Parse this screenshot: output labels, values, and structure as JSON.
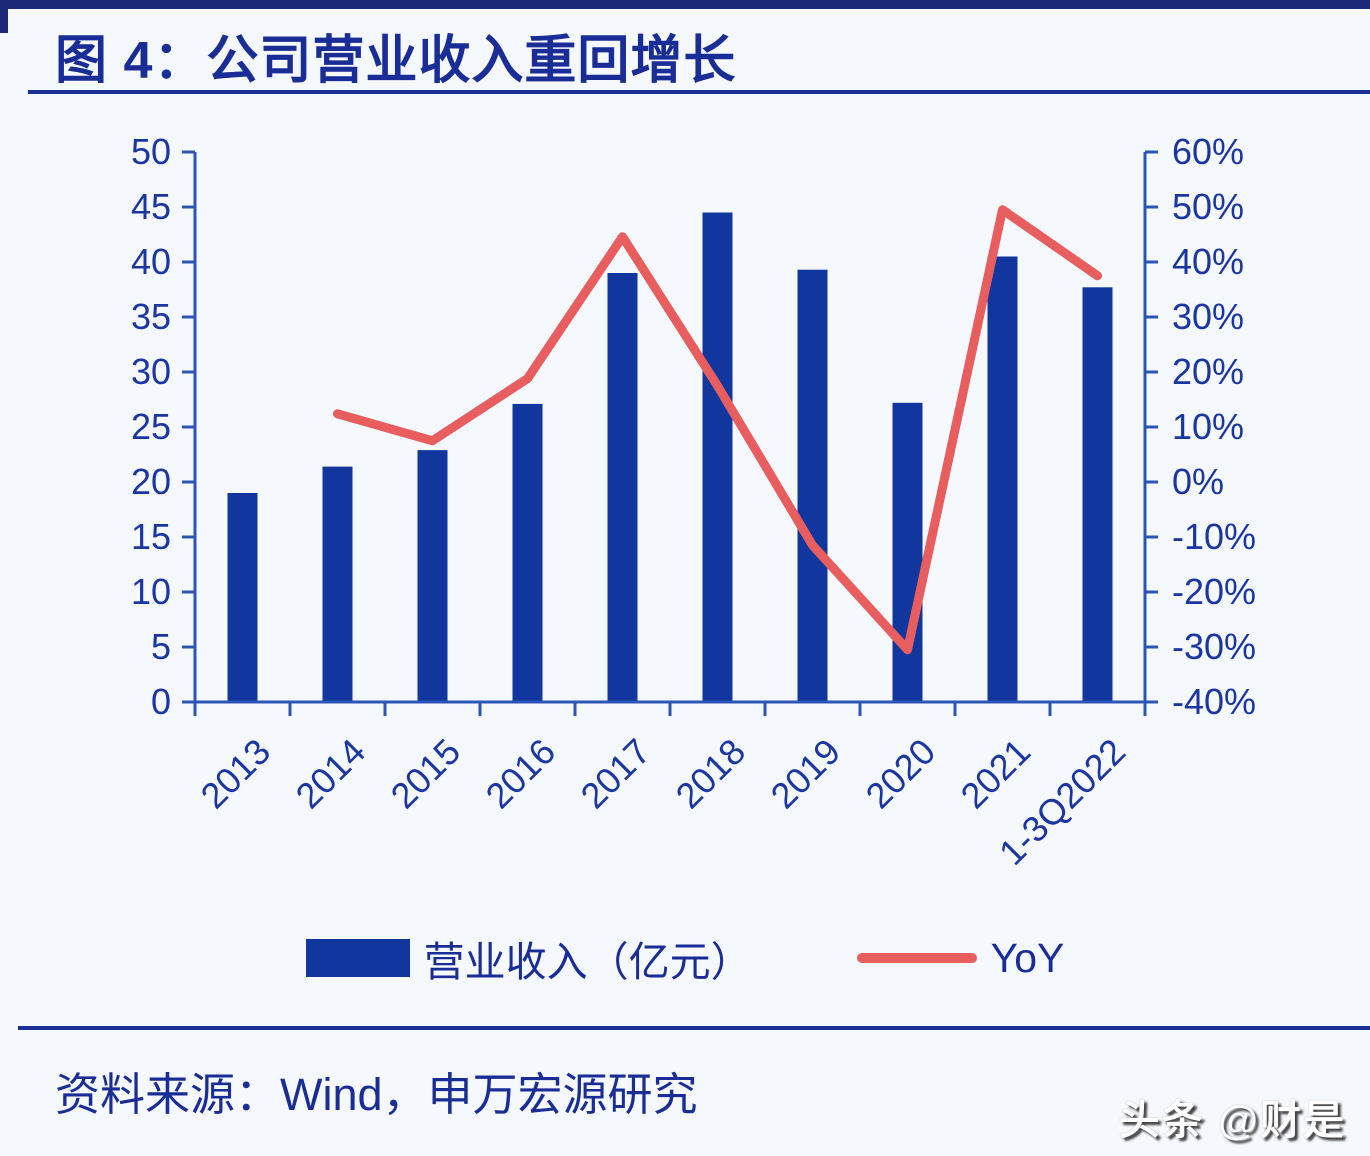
{
  "page": {
    "background_color": "#f5f8fd",
    "top_bar_color": "#1b2878"
  },
  "figure": {
    "title": "图 4：公司营业收入重回增长",
    "title_color": "#1a2c96"
  },
  "chart_data": {
    "type": "bar+line combo",
    "categories": [
      "2013",
      "2014",
      "2015",
      "2016",
      "2017",
      "2018",
      "2019",
      "2020",
      "2021",
      "1-3Q2022"
    ],
    "series": [
      {
        "name": "营业收入（亿元）",
        "type": "bar",
        "axis": "left",
        "color": "#11379f",
        "values": [
          19.0,
          21.4,
          22.9,
          27.1,
          39.0,
          44.5,
          39.3,
          27.2,
          40.5,
          37.7
        ]
      },
      {
        "name": "YoY",
        "type": "line",
        "axis": "right",
        "color": "#e85d5e",
        "values": [
          null,
          12.4,
          7.5,
          18.8,
          44.6,
          17.5,
          -11.5,
          -30.5,
          49.5,
          37.5
        ]
      }
    ],
    "left_axis": {
      "min": 0,
      "max": 50,
      "tick_step": 5,
      "tick_labels": [
        "0",
        "5",
        "10",
        "15",
        "20",
        "25",
        "30",
        "35",
        "40",
        "45",
        "50"
      ]
    },
    "right_axis": {
      "min": -40,
      "max": 60,
      "tick_step": 10,
      "tick_labels": [
        "-40%",
        "-30%",
        "-20%",
        "-10%",
        "0%",
        "10%",
        "20%",
        "30%",
        "40%",
        "50%",
        "60%"
      ]
    },
    "axis_color": "#2d55b5",
    "label_color": "#1b36a3",
    "grid": false,
    "legend_position": "bottom",
    "x_labels_rotation_deg": -45
  },
  "source": {
    "text": "资料来源：Wind，申万宏源研究"
  },
  "watermark": {
    "text": "头条 @财是"
  }
}
